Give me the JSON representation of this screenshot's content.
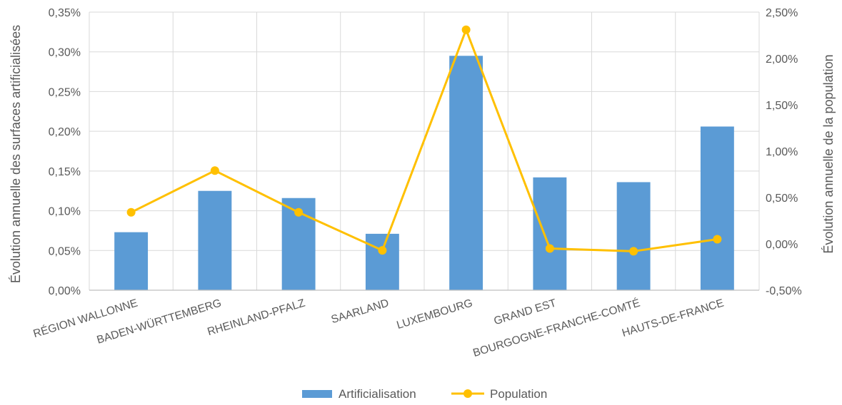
{
  "chart_data": {
    "type": "bar+line",
    "categories": [
      "RÉGION WALLONNE",
      "BADEN-WÜRTTEMBERG",
      "RHEINLAND-PFALZ",
      "SAARLAND",
      "LUXEMBOURG",
      "GRAND EST",
      "BOURGOGNE-FRANCHE-COMTÉ",
      "HAUTS-DE-FRANCE"
    ],
    "series": [
      {
        "name": "Artificialisation",
        "type": "bar",
        "axis": "left",
        "unit": "%",
        "values": [
          0.073,
          0.125,
          0.116,
          0.071,
          0.295,
          0.142,
          0.136,
          0.206
        ],
        "color": "#5B9BD5"
      },
      {
        "name": "Population",
        "type": "line",
        "axis": "right",
        "unit": "%",
        "values": [
          0.34,
          0.79,
          0.34,
          -0.07,
          2.31,
          -0.05,
          -0.08,
          0.05
        ],
        "color": "#FFC000"
      }
    ],
    "ylabel": "Évolution annuelle des surfaces artificialisées",
    "y2label": "Évolution annuelle de la population",
    "ylim": [
      0,
      0.35
    ],
    "y2lim": [
      -0.5,
      2.5
    ],
    "yticks": [
      "0,00%",
      "0,05%",
      "0,10%",
      "0,15%",
      "0,20%",
      "0,25%",
      "0,30%",
      "0,35%"
    ],
    "y2ticks": [
      "-0,50%",
      "0,00%",
      "0,50%",
      "1,00%",
      "1,50%",
      "2,00%",
      "2,50%"
    ],
    "grid": true,
    "legend_position": "bottom"
  }
}
